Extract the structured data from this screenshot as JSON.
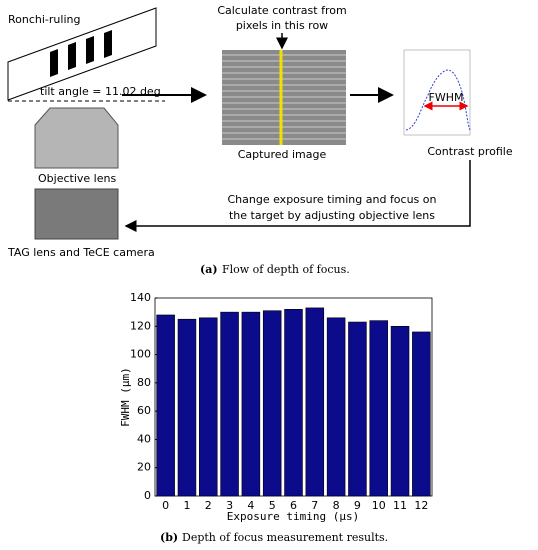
{
  "diagram": {
    "ronchi_label": "Ronchi-ruling",
    "tilt_label": "tilt angle = 11.02 deg",
    "objective_label": "Objective lens",
    "camera_label": "TAG lens and TeCE camera",
    "calc_line1": "Calculate contrast from",
    "calc_line2": "pixels in this row",
    "captured_label": "Captured image",
    "fwhm_label": "FWHM",
    "profile_label": "Contrast profile",
    "feedback_line1": "Change exposure timing and focus on",
    "feedback_line2": "the target by adjusting objective lens"
  },
  "captions": [
    {
      "label": "(a)",
      "text": "Flow of depth of focus."
    },
    {
      "label": "(b)",
      "text": "Depth of focus measurement results."
    }
  ],
  "chart_data": {
    "type": "bar",
    "x_label": "Exposure timing (µs)",
    "y_label": "FWHM (µm)",
    "categories": [
      "0",
      "1",
      "2",
      "3",
      "4",
      "5",
      "6",
      "7",
      "8",
      "9",
      "10",
      "11",
      "12"
    ],
    "values": [
      128,
      125,
      126,
      130,
      130,
      131,
      132,
      133,
      126,
      123,
      124,
      120,
      116
    ],
    "color": "#0b0b8c",
    "ylim": [
      0,
      140
    ],
    "yticks": [
      0,
      20,
      40,
      60,
      80,
      100,
      120,
      140
    ],
    "grid": false
  }
}
